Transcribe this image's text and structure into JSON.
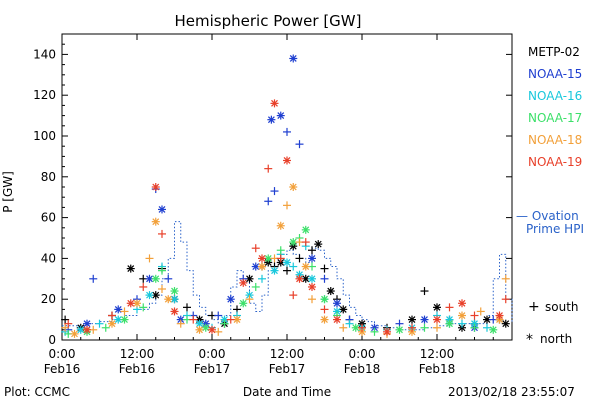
{
  "chart_data": {
    "type": "scatter",
    "title": "Hemispheric Power [GW]",
    "ylabel": "P [GW]",
    "xlabel": "Date and Time",
    "ylim": [
      0,
      150
    ],
    "yticks": [
      0,
      20,
      40,
      60,
      80,
      100,
      120,
      140
    ],
    "xlim": [
      "2013-02-16 00:00",
      "2013-02-18 23:59"
    ],
    "xticks": [
      {
        "time": "0:00",
        "date": "Feb16",
        "hour": 0
      },
      {
        "time": "12:00",
        "date": "Feb16",
        "hour": 12
      },
      {
        "time": "0:00",
        "date": "Feb17",
        "hour": 24
      },
      {
        "time": "12:00",
        "date": "Feb17",
        "hour": 36
      },
      {
        "time": "0:00",
        "date": "Feb18",
        "hour": 48
      },
      {
        "time": "12:00",
        "date": "Feb18",
        "hour": 60
      }
    ],
    "grid": false,
    "legend": {
      "placement": "right"
    },
    "footer_left": "Plot: CCMC",
    "footer_right": "2013/02/18 23:55:07",
    "markers": {
      "south_symbol": "+",
      "south_label": "south",
      "north_symbol": "*",
      "north_label": "north"
    },
    "ovation": {
      "label_line1": "— Ovation",
      "label_line2": "Prime HPI",
      "color": "#2a62c9",
      "x": [
        0,
        4,
        6,
        8,
        10,
        12,
        14,
        15,
        16,
        17,
        18,
        19,
        20,
        21,
        22,
        23,
        24,
        25,
        26,
        27,
        28,
        29,
        30,
        31,
        32,
        33,
        34,
        35,
        36,
        37,
        38,
        39,
        40,
        41,
        42,
        43,
        44,
        45,
        46,
        47,
        48,
        49,
        50,
        52,
        54,
        56,
        58,
        60,
        62,
        64,
        66,
        68,
        69,
        70,
        71,
        72
      ],
      "y": [
        7,
        8,
        9,
        10,
        12,
        15,
        18,
        22,
        30,
        40,
        58,
        48,
        34,
        22,
        16,
        12,
        10,
        8,
        12,
        26,
        34,
        28,
        18,
        14,
        22,
        34,
        40,
        42,
        44,
        42,
        40,
        38,
        45,
        44,
        40,
        36,
        30,
        22,
        16,
        12,
        10,
        9,
        7,
        6,
        5,
        5,
        6,
        7,
        8,
        8,
        8,
        12,
        30,
        42,
        20,
        8
      ]
    },
    "series": [
      {
        "name": "METP-02",
        "color": "#000000",
        "points": [
          [
            0.5,
            10
          ],
          [
            3,
            6
          ],
          [
            8,
            12
          ],
          [
            11,
            35
          ],
          [
            13,
            30
          ],
          [
            15,
            22
          ],
          [
            16,
            35
          ],
          [
            18,
            20
          ],
          [
            20,
            16
          ],
          [
            22,
            10
          ],
          [
            24,
            12
          ],
          [
            26,
            8
          ],
          [
            28,
            15
          ],
          [
            30,
            30
          ],
          [
            32,
            36
          ],
          [
            33,
            38
          ],
          [
            34,
            36
          ],
          [
            35,
            38
          ],
          [
            36,
            34
          ],
          [
            37,
            46
          ],
          [
            38,
            40
          ],
          [
            39,
            30
          ],
          [
            40,
            44
          ],
          [
            41,
            47
          ],
          [
            42,
            35
          ],
          [
            43,
            24
          ],
          [
            44,
            20
          ],
          [
            45,
            15
          ],
          [
            46,
            10
          ],
          [
            48,
            8
          ],
          [
            52,
            6
          ],
          [
            56,
            10
          ],
          [
            58,
            24
          ],
          [
            60,
            16
          ],
          [
            62,
            10
          ],
          [
            64,
            6
          ],
          [
            66,
            8
          ],
          [
            68,
            10
          ],
          [
            70,
            10
          ],
          [
            71,
            8
          ]
        ]
      },
      {
        "name": "NOAA-15",
        "color": "#1f3fd0",
        "points": [
          [
            1,
            5
          ],
          [
            4,
            8
          ],
          [
            5,
            30
          ],
          [
            9,
            15
          ],
          [
            12,
            20
          ],
          [
            14,
            30
          ],
          [
            15,
            74
          ],
          [
            16,
            64
          ],
          [
            17,
            30
          ],
          [
            19,
            10
          ],
          [
            21,
            12
          ],
          [
            23,
            8
          ],
          [
            25,
            12
          ],
          [
            27,
            20
          ],
          [
            29,
            30
          ],
          [
            31,
            36
          ],
          [
            33,
            68
          ],
          [
            33.5,
            108
          ],
          [
            34,
            73
          ],
          [
            35,
            110
          ],
          [
            36,
            102
          ],
          [
            37,
            138
          ],
          [
            38,
            96
          ],
          [
            40,
            40
          ],
          [
            42,
            30
          ],
          [
            44,
            18
          ],
          [
            46,
            10
          ],
          [
            50,
            6
          ],
          [
            54,
            8
          ],
          [
            58,
            10
          ],
          [
            62,
            8
          ],
          [
            66,
            6
          ],
          [
            69,
            10
          ]
        ]
      },
      {
        "name": "NOAA-16",
        "color": "#19c8dc",
        "points": [
          [
            0.5,
            4
          ],
          [
            3,
            5
          ],
          [
            6,
            8
          ],
          [
            9,
            10
          ],
          [
            12,
            15
          ],
          [
            14,
            22
          ],
          [
            16,
            36
          ],
          [
            18,
            20
          ],
          [
            20,
            12
          ],
          [
            22,
            8
          ],
          [
            24,
            6
          ],
          [
            26,
            10
          ],
          [
            28,
            12
          ],
          [
            30,
            22
          ],
          [
            32,
            30
          ],
          [
            34,
            34
          ],
          [
            35,
            42
          ],
          [
            36,
            38
          ],
          [
            37,
            36
          ],
          [
            38,
            32
          ],
          [
            39,
            46
          ],
          [
            40,
            30
          ],
          [
            42,
            20
          ],
          [
            44,
            14
          ],
          [
            46,
            8
          ],
          [
            48,
            6
          ],
          [
            52,
            5
          ],
          [
            56,
            6
          ],
          [
            60,
            12
          ],
          [
            62,
            10
          ],
          [
            64,
            8
          ],
          [
            66,
            8
          ],
          [
            68,
            6
          ]
        ]
      },
      {
        "name": "NOAA-17",
        "color": "#3ce06a",
        "points": [
          [
            1,
            3
          ],
          [
            4,
            4
          ],
          [
            7,
            6
          ],
          [
            10,
            10
          ],
          [
            13,
            16
          ],
          [
            15,
            30
          ],
          [
            16,
            34
          ],
          [
            18,
            24
          ],
          [
            20,
            10
          ],
          [
            23,
            6
          ],
          [
            26,
            8
          ],
          [
            29,
            18
          ],
          [
            31,
            26
          ],
          [
            33,
            40
          ],
          [
            35,
            44
          ],
          [
            37,
            48
          ],
          [
            38,
            50
          ],
          [
            39,
            54
          ],
          [
            40,
            36
          ],
          [
            42,
            20
          ],
          [
            44,
            12
          ],
          [
            47,
            6
          ],
          [
            50,
            4
          ],
          [
            54,
            5
          ],
          [
            58,
            6
          ],
          [
            62,
            8
          ],
          [
            66,
            6
          ],
          [
            69,
            5
          ]
        ]
      },
      {
        "name": "NOAA-18",
        "color": "#f2a03a",
        "points": [
          [
            0.5,
            6
          ],
          [
            2,
            3
          ],
          [
            5,
            5
          ],
          [
            8,
            8
          ],
          [
            10,
            14
          ],
          [
            12,
            18
          ],
          [
            14,
            40
          ],
          [
            15,
            58
          ],
          [
            16,
            25
          ],
          [
            17,
            20
          ],
          [
            19,
            8
          ],
          [
            22,
            5
          ],
          [
            25,
            4
          ],
          [
            28,
            10
          ],
          [
            30,
            20
          ],
          [
            32,
            36
          ],
          [
            34,
            40
          ],
          [
            35,
            56
          ],
          [
            36,
            66
          ],
          [
            37,
            75
          ],
          [
            38,
            48
          ],
          [
            39,
            36
          ],
          [
            40,
            20
          ],
          [
            42,
            10
          ],
          [
            45,
            6
          ],
          [
            48,
            4
          ],
          [
            52,
            3
          ],
          [
            56,
            4
          ],
          [
            60,
            6
          ],
          [
            64,
            12
          ],
          [
            67,
            14
          ],
          [
            70,
            10
          ],
          [
            71,
            30
          ]
        ]
      },
      {
        "name": "NOAA-19",
        "color": "#e8402a",
        "points": [
          [
            1,
            8
          ],
          [
            4,
            5
          ],
          [
            8,
            12
          ],
          [
            11,
            18
          ],
          [
            13,
            26
          ],
          [
            15,
            75
          ],
          [
            16,
            52
          ],
          [
            18,
            14
          ],
          [
            21,
            10
          ],
          [
            24,
            5
          ],
          [
            27,
            10
          ],
          [
            29,
            28
          ],
          [
            31,
            45
          ],
          [
            32,
            40
          ],
          [
            33,
            84
          ],
          [
            34,
            116
          ],
          [
            35,
            40
          ],
          [
            36,
            88
          ],
          [
            37,
            22
          ],
          [
            38,
            30
          ],
          [
            39,
            48
          ],
          [
            40,
            26
          ],
          [
            42,
            15
          ],
          [
            44,
            10
          ],
          [
            48,
            6
          ],
          [
            52,
            4
          ],
          [
            56,
            6
          ],
          [
            60,
            10
          ],
          [
            62,
            16
          ],
          [
            64,
            18
          ],
          [
            66,
            12
          ],
          [
            70,
            12
          ],
          [
            71,
            20
          ]
        ]
      }
    ]
  }
}
